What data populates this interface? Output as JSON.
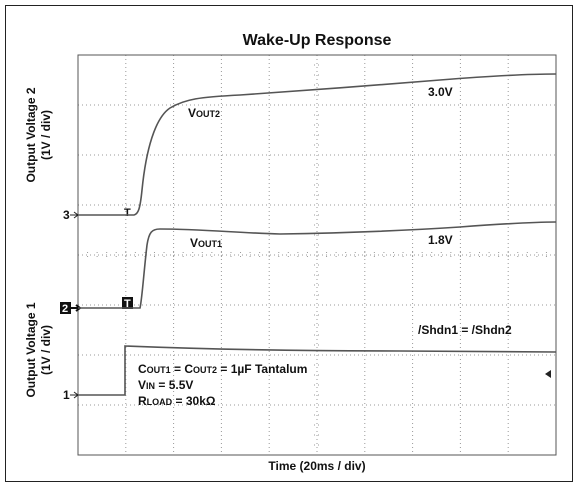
{
  "title": "Wake-Up Response",
  "y_label_top": [
    "Output Voltage 2",
    "(1V / div)"
  ],
  "y_label_bottom": [
    "Output Voltage 1",
    "(1V / div)"
  ],
  "x_label": "Time (20ms / div)",
  "channel_markers": [
    "3",
    "2",
    "1"
  ],
  "trigger_marker": "T",
  "trace_labels": {
    "vout2": [
      "V",
      "OUT2"
    ],
    "vout2_level": "3.0V",
    "vout1": [
      "V",
      "OUT1"
    ],
    "vout1_level": "1.8V",
    "shdn": "/Shdn1 = /Shdn2"
  },
  "conditions": {
    "cout": [
      "C",
      "OUT1",
      " = C",
      "OUT2",
      " = 1µF Tantalum"
    ],
    "vin": [
      "V",
      "IN",
      " = 5.5V"
    ],
    "rload": [
      "R",
      "LOAD",
      " = 30kΩ"
    ]
  }
}
